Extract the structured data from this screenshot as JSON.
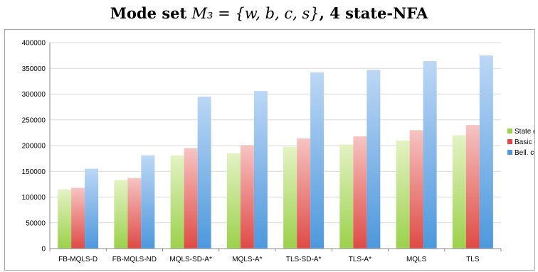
{
  "title_prefix": "Mode set ",
  "title_math": "M₃ = {w, b, c, s}",
  "title_suffix": ", 4 state-NFA",
  "chart_data": {
    "type": "bar",
    "categories": [
      "FB-MQLS-D",
      "FB-MQLS-ND",
      "MQLS-SD-A*",
      "MQLS-A*",
      "TLS-SD-A*",
      "TLS-A*",
      "MQLS",
      "TLS"
    ],
    "series": [
      {
        "name": "State dom",
        "color_top": "#e4f2c4",
        "color_bottom": "#9bd14b",
        "values": [
          115000,
          133000,
          181000,
          185000,
          198000,
          202000,
          210000,
          220000
        ]
      },
      {
        "name": "Basic dom",
        "color_top": "#f6c4c2",
        "color_bottom": "#df4a46",
        "values": [
          118000,
          137000,
          195000,
          201000,
          214000,
          218000,
          230000,
          240000
        ]
      },
      {
        "name": "Bell. cond",
        "color_top": "#bcd7f4",
        "color_bottom": "#4d98dd",
        "values": [
          155000,
          181000,
          295000,
          306000,
          342000,
          347000,
          364000,
          375000
        ]
      }
    ],
    "ylim": [
      0,
      400000
    ],
    "yticks": [
      "0",
      "50000",
      "100000",
      "150000",
      "200000",
      "250000",
      "300000",
      "350000",
      "400000"
    ],
    "grid": true,
    "legend_position": "right"
  }
}
